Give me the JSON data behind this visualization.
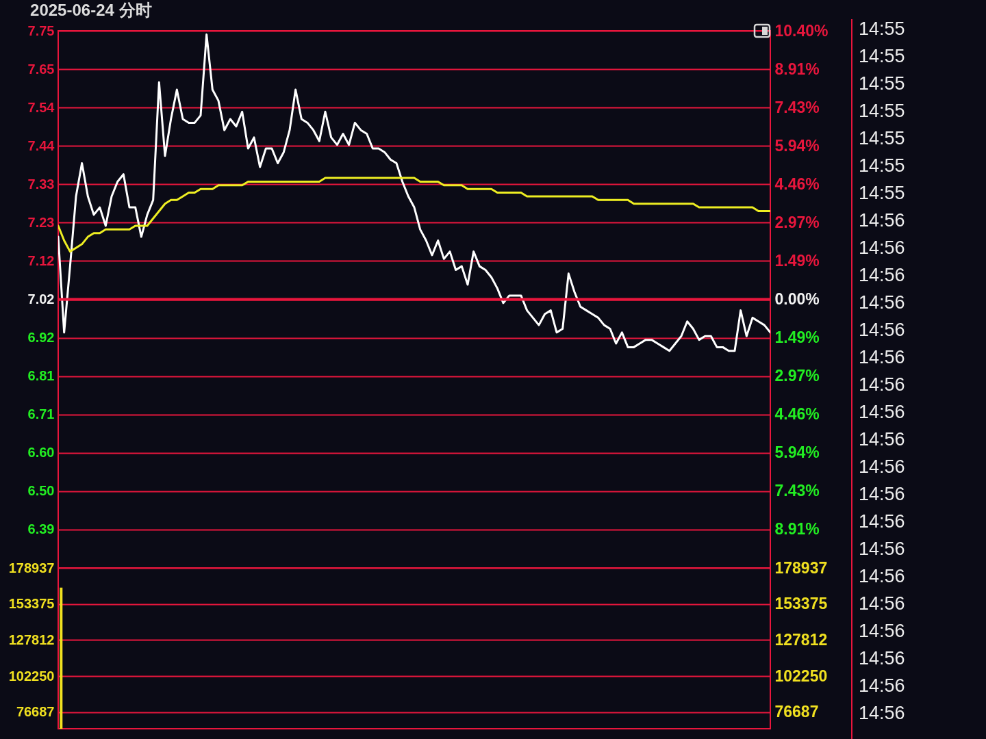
{
  "chart_data": [
    {
      "type": "line",
      "title": "2025-06-24 分时",
      "categories": [
        null,
        null,
        null,
        null,
        null,
        null,
        null,
        null,
        null,
        null,
        null,
        null,
        null,
        null,
        null,
        null,
        null,
        null,
        null,
        null,
        null,
        null,
        null,
        null,
        null,
        null,
        null,
        null,
        null,
        null,
        null,
        null,
        null,
        null,
        null,
        null,
        null,
        null,
        null,
        null,
        null,
        null,
        null,
        null,
        null,
        null,
        null,
        null,
        null,
        null,
        null,
        null,
        null,
        null,
        null,
        null,
        null,
        null,
        null,
        null,
        null,
        null,
        null,
        null,
        null,
        null,
        null,
        null,
        null,
        null,
        null,
        null,
        null,
        null,
        null,
        null,
        null,
        null,
        null,
        null,
        null,
        null,
        null,
        null,
        null,
        null,
        null,
        null,
        null,
        null,
        null,
        null,
        null,
        null,
        null,
        null,
        null,
        null,
        null,
        null,
        null,
        null,
        null,
        null,
        null,
        null,
        null,
        null,
        null,
        null,
        null,
        null,
        null,
        null,
        null,
        null,
        null,
        null,
        null,
        null,
        null
      ],
      "series": [
        {
          "color": "#ffffff",
          "values": [
            7.19,
            6.93,
            7.11,
            7.3,
            7.39,
            7.3,
            7.25,
            7.27,
            7.22,
            7.3,
            7.34,
            7.36,
            7.27,
            7.27,
            7.19,
            7.25,
            7.29,
            7.61,
            7.41,
            7.51,
            7.59,
            7.51,
            7.5,
            7.5,
            7.52,
            7.74,
            7.59,
            7.56,
            7.48,
            7.51,
            7.49,
            7.53,
            7.43,
            7.46,
            7.38,
            7.43,
            7.43,
            7.39,
            7.42,
            7.48,
            7.59,
            7.51,
            7.5,
            7.48,
            7.45,
            7.53,
            7.46,
            7.44,
            7.47,
            7.44,
            7.5,
            7.48,
            7.47,
            7.43,
            7.43,
            7.42,
            7.4,
            7.39,
            7.34,
            7.3,
            7.27,
            7.21,
            7.18,
            7.14,
            7.18,
            7.13,
            7.15,
            7.1,
            7.11,
            7.06,
            7.15,
            7.11,
            7.1,
            7.08,
            7.05,
            7.01,
            7.03,
            7.03,
            7.03,
            6.99,
            6.97,
            6.95,
            6.98,
            6.99,
            6.93,
            6.94,
            7.09,
            7.04,
            7.0,
            6.99,
            6.98,
            6.97,
            6.95,
            6.94,
            6.9,
            6.93,
            6.89,
            6.89,
            6.9,
            6.91,
            6.91,
            6.9,
            6.89,
            6.88,
            6.9,
            6.92,
            6.96,
            6.94,
            6.91,
            6.92,
            6.92,
            6.89,
            6.89,
            6.88,
            6.88,
            6.99,
            6.92,
            6.97,
            6.96,
            6.95,
            6.93
          ]
        },
        {
          "color": "#eeee22",
          "values": [
            7.22,
            7.18,
            7.15,
            7.16,
            7.17,
            7.19,
            7.2,
            7.2,
            7.21,
            7.21,
            7.21,
            7.21,
            7.21,
            7.22,
            7.22,
            7.22,
            7.24,
            7.26,
            7.28,
            7.29,
            7.29,
            7.3,
            7.31,
            7.31,
            7.32,
            7.32,
            7.32,
            7.33,
            7.33,
            7.33,
            7.33,
            7.33,
            7.34,
            7.34,
            7.34,
            7.34,
            7.34,
            7.34,
            7.34,
            7.34,
            7.34,
            7.34,
            7.34,
            7.34,
            7.34,
            7.35,
            7.35,
            7.35,
            7.35,
            7.35,
            7.35,
            7.35,
            7.35,
            7.35,
            7.35,
            7.35,
            7.35,
            7.35,
            7.35,
            7.35,
            7.35,
            7.34,
            7.34,
            7.34,
            7.34,
            7.33,
            7.33,
            7.33,
            7.33,
            7.32,
            7.32,
            7.32,
            7.32,
            7.32,
            7.31,
            7.31,
            7.31,
            7.31,
            7.31,
            7.3,
            7.3,
            7.3,
            7.3,
            7.3,
            7.3,
            7.3,
            7.3,
            7.3,
            7.3,
            7.3,
            7.3,
            7.29,
            7.29,
            7.29,
            7.29,
            7.29,
            7.29,
            7.28,
            7.28,
            7.28,
            7.28,
            7.28,
            7.28,
            7.28,
            7.28,
            7.28,
            7.28,
            7.28,
            7.27,
            7.27,
            7.27,
            7.27,
            7.27,
            7.27,
            7.27,
            7.27,
            7.27,
            7.27,
            7.26,
            7.26,
            7.26
          ]
        }
      ],
      "ylim": [
        6.29,
        7.75
      ],
      "yticks": [
        7.75,
        {
          "value": 7.6455,
          "label": "7.65"
        },
        {
          "value": 7.5416,
          "label": "7.54"
        },
        {
          "value": 7.437,
          "label": "7.44"
        },
        {
          "value": 7.3331,
          "label": "7.33"
        },
        {
          "value": 7.2285,
          "label": "7.23"
        },
        {
          "value": 7.1246,
          "label": "7.12"
        },
        7.02,
        {
          "value": 6.9154,
          "label": "6.92"
        },
        {
          "value": 6.8115,
          "label": "6.81"
        },
        {
          "value": 6.7069,
          "label": "6.71"
        },
        {
          "value": 6.603,
          "label": "6.60"
        },
        {
          "value": 6.4984,
          "label": "6.50"
        },
        {
          "value": 6.3945,
          "label": "6.39"
        }
      ],
      "y2lim": [
        -10.4,
        10.4
      ],
      "y2ticks": [
        {
          "value": 10.4,
          "label": "10.40%"
        },
        {
          "value": 8.91,
          "label": "8.91%"
        },
        {
          "value": 7.43,
          "label": "7.43%"
        },
        {
          "value": 5.94,
          "label": "5.94%"
        },
        {
          "value": 4.46,
          "label": "4.46%"
        },
        {
          "value": 2.97,
          "label": "2.97%"
        },
        {
          "value": 1.49,
          "label": "1.49%"
        },
        {
          "value": 0,
          "label": "0.00%"
        },
        {
          "value": -1.49,
          "label": "1.49%"
        },
        {
          "value": -2.97,
          "label": "2.97%"
        },
        {
          "value": -4.46,
          "label": "4.46%"
        },
        {
          "value": -5.94,
          "label": "5.94%"
        },
        {
          "value": -7.43,
          "label": "7.43%"
        },
        {
          "value": -8.91,
          "label": "8.91%"
        }
      ],
      "ref_lines": [
        {
          "axis": "y2",
          "value": 0,
          "color": "#e8163c"
        }
      ],
      "grid": "y",
      "tick_labels": "y",
      "annotations": [
        "14:55",
        "14:55",
        "14:55",
        "14:55",
        "14:55",
        "14:55",
        "14:55",
        "14:56",
        "14:56",
        "14:56",
        "14:56",
        "14:56",
        "14:56",
        "14:56",
        "14:56",
        "14:56",
        "14:56",
        "14:56",
        "14:56",
        "14:56",
        "14:56",
        "14:56",
        "14:56",
        "14:56",
        "14:56",
        "14:56"
      ]
    },
    {
      "type": "bar",
      "categories": [
        null,
        null,
        null,
        null,
        null,
        null,
        null,
        null,
        null,
        null,
        null,
        null,
        null,
        null,
        null,
        null,
        null,
        null,
        null,
        null,
        null,
        null,
        null,
        null,
        null,
        null,
        null,
        null,
        null,
        null,
        null,
        null,
        null,
        null,
        null,
        null,
        null,
        null,
        null,
        null,
        null,
        null,
        null,
        null,
        null,
        null,
        null,
        null,
        null,
        null,
        null,
        null,
        null,
        null,
        null,
        null,
        null,
        null,
        null,
        null,
        null,
        null,
        null,
        null,
        null,
        null,
        null,
        null,
        null,
        null,
        null,
        null,
        null,
        null,
        null,
        null,
        null,
        null,
        null,
        null,
        null,
        null,
        null,
        null,
        null,
        null,
        null,
        null,
        null,
        null,
        null,
        null,
        null,
        null,
        null,
        null,
        null,
        null,
        null,
        null,
        null,
        null,
        null,
        null,
        null,
        null,
        null,
        null,
        null,
        null,
        null,
        null,
        null,
        null,
        null,
        null,
        null,
        null,
        null,
        null,
        null
      ],
      "color": "#f0e020",
      "values": [
        165000,
        null,
        null,
        null,
        null,
        null,
        null,
        null,
        null,
        null,
        null,
        null,
        null,
        null,
        null,
        null,
        null,
        null,
        null,
        null,
        null,
        null,
        null,
        null,
        null,
        null,
        null,
        null,
        null,
        null,
        null,
        null,
        null,
        null,
        null,
        null,
        null,
        null,
        null,
        null,
        null,
        null,
        null,
        null,
        null,
        null,
        null,
        null,
        null,
        null,
        null,
        null,
        null,
        null,
        null,
        null,
        null,
        null,
        null,
        null,
        null,
        null,
        null,
        null,
        null,
        null,
        null,
        null,
        null,
        null,
        null,
        null,
        null,
        null,
        null,
        null,
        null,
        null,
        null,
        null,
        null,
        null,
        null,
        null,
        null,
        null,
        null,
        null,
        null,
        null,
        null,
        null,
        null,
        null,
        null,
        null,
        null,
        null,
        null,
        null,
        null,
        null,
        null,
        null,
        null,
        null,
        null,
        null,
        null,
        null,
        null,
        null,
        null,
        null,
        null,
        null,
        null,
        null,
        null,
        null,
        null
      ],
      "ylim": [
        65000,
        178937
      ],
      "yticks": [
        178937,
        153375,
        127812,
        102250,
        76687
      ],
      "y2lim": [
        65000,
        178937
      ],
      "y2ticks": [
        178937,
        153375,
        127812,
        102250,
        76687
      ],
      "grid": "y",
      "tick_labels": "y"
    }
  ]
}
